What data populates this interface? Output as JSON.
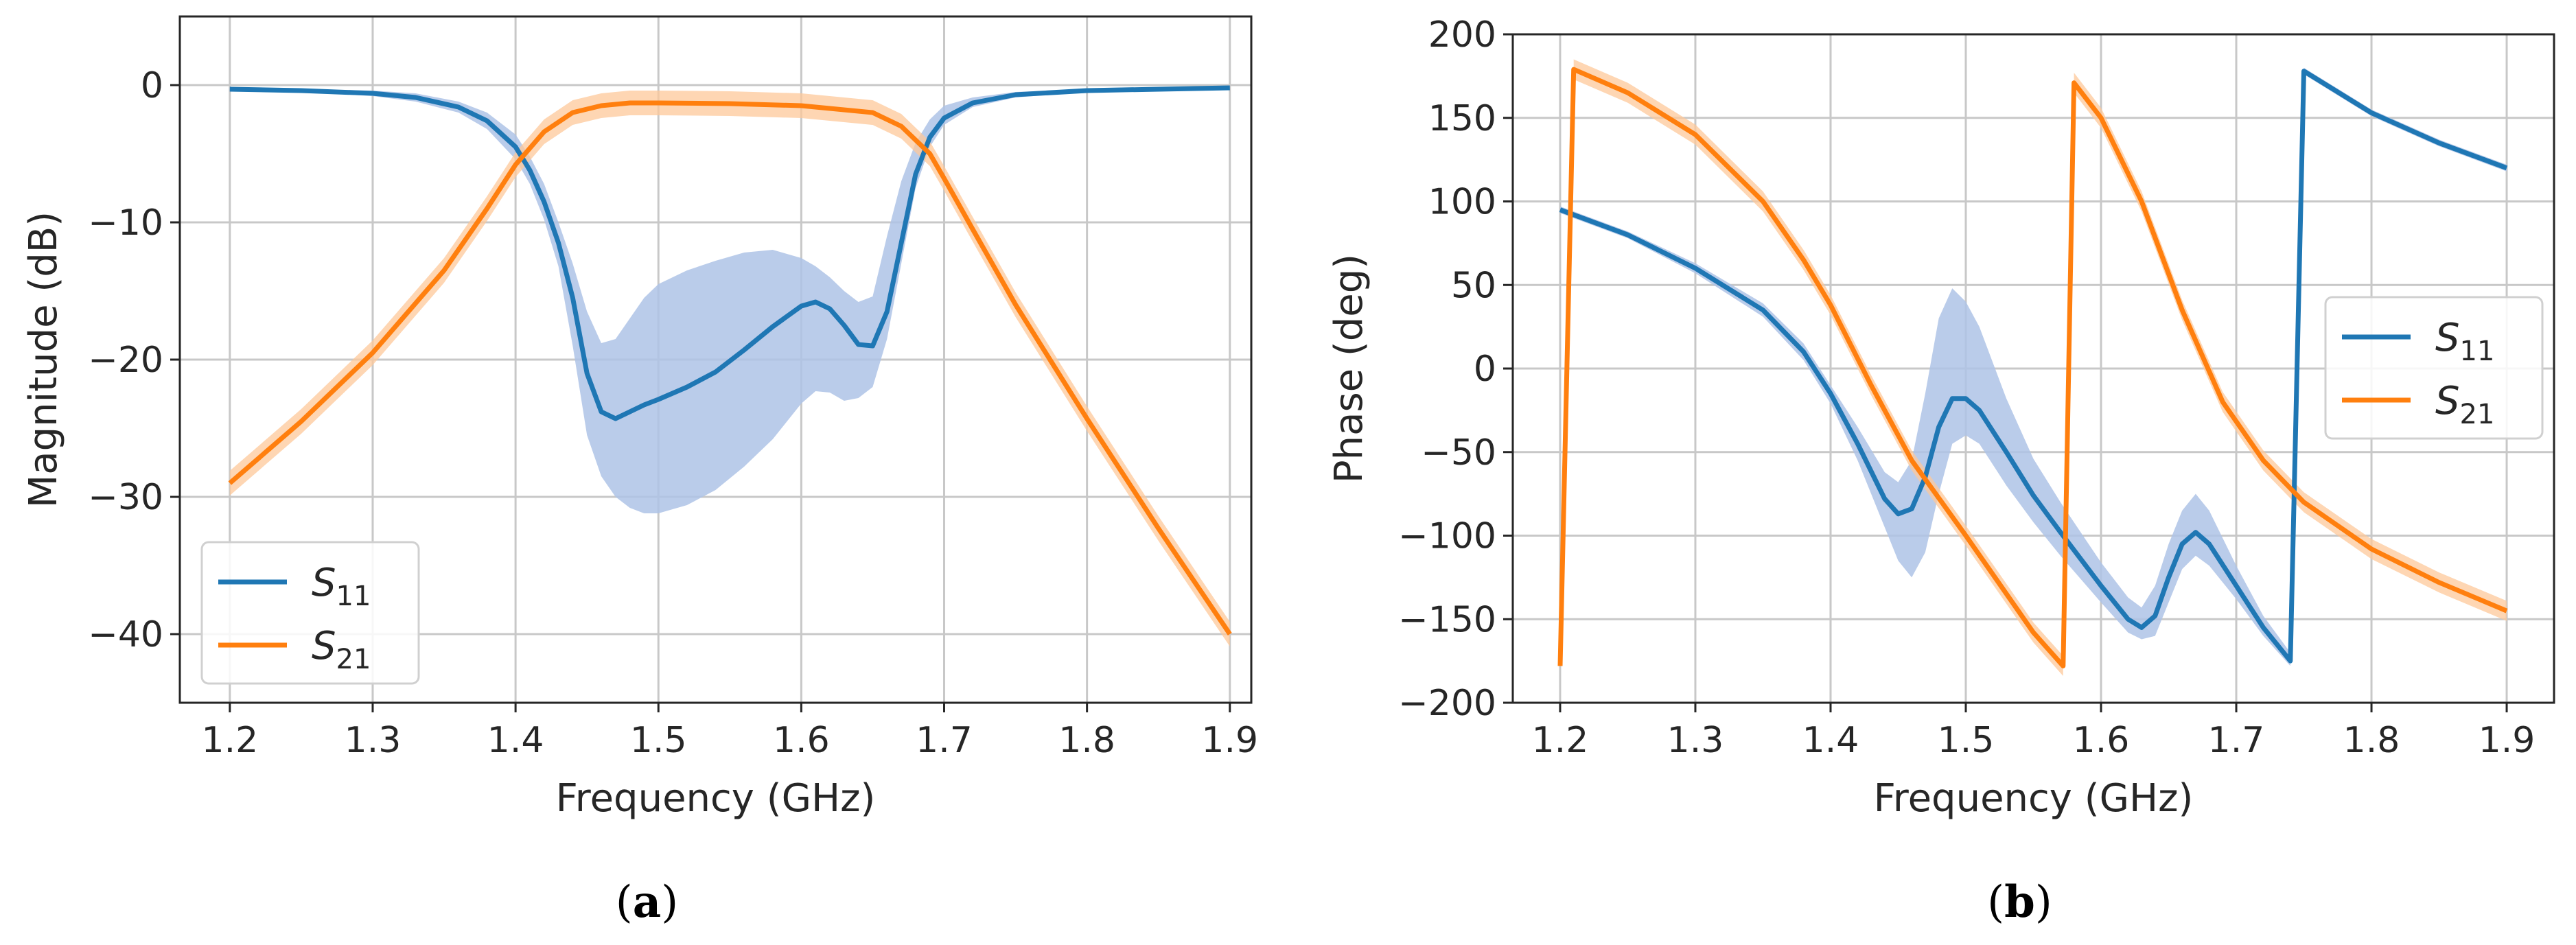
{
  "colors": {
    "s11": "#1f77b4",
    "s11_band": "#aec3e6",
    "s21": "#ff7f0e",
    "s21_band": "#fdc89a",
    "grid": "#c8c8c8",
    "axis": "#262626"
  },
  "chart_data": [
    {
      "id": "a",
      "type": "line",
      "caption_letter": "a",
      "xlabel": "Frequency (GHz)",
      "ylabel": "Magnitude (dB)",
      "xlim": [
        1.165,
        1.915
      ],
      "ylim": [
        -45,
        5
      ],
      "xticks": [
        1.2,
        1.3,
        1.4,
        1.5,
        1.6,
        1.7,
        1.8,
        1.9
      ],
      "xtick_labels": [
        "1.2",
        "1.3",
        "1.4",
        "1.5",
        "1.6",
        "1.7",
        "1.8",
        "1.9"
      ],
      "yticks": [
        0,
        -10,
        -20,
        -30,
        -40
      ],
      "ytick_labels": [
        "0",
        "−10",
        "−20",
        "−30",
        "−40"
      ],
      "grid": true,
      "legend_position": "lower-left",
      "series": [
        {
          "key": "s11",
          "name": "S11",
          "legend_main": "S",
          "legend_sub": "11",
          "color": "#1f77b4",
          "x": [
            1.2,
            1.25,
            1.3,
            1.33,
            1.36,
            1.38,
            1.4,
            1.41,
            1.42,
            1.43,
            1.44,
            1.45,
            1.46,
            1.47,
            1.48,
            1.49,
            1.5,
            1.52,
            1.54,
            1.56,
            1.58,
            1.6,
            1.61,
            1.62,
            1.63,
            1.64,
            1.65,
            1.66,
            1.67,
            1.68,
            1.69,
            1.7,
            1.72,
            1.75,
            1.8,
            1.9
          ],
          "y": [
            -0.3,
            -0.4,
            -0.6,
            -0.9,
            -1.6,
            -2.6,
            -4.5,
            -6.2,
            -8.5,
            -11.5,
            -15.5,
            -21.0,
            -23.8,
            -24.3,
            -23.8,
            -23.3,
            -22.9,
            -22.0,
            -20.9,
            -19.3,
            -17.6,
            -16.1,
            -15.8,
            -16.3,
            -17.5,
            -18.9,
            -19.0,
            -16.5,
            -11.5,
            -6.5,
            -3.8,
            -2.4,
            -1.3,
            -0.7,
            -0.4,
            -0.2
          ],
          "band_low": [
            -0.4,
            -0.5,
            -0.8,
            -1.2,
            -2.0,
            -3.2,
            -5.4,
            -7.2,
            -9.8,
            -13.2,
            -19.0,
            -25.5,
            -28.5,
            -30.0,
            -30.8,
            -31.2,
            -31.2,
            -30.6,
            -29.5,
            -27.8,
            -25.8,
            -23.2,
            -22.3,
            -22.4,
            -23.0,
            -22.8,
            -22.0,
            -18.5,
            -13.0,
            -7.5,
            -4.5,
            -2.9,
            -1.6,
            -0.9,
            -0.5,
            -0.3
          ],
          "band_high": [
            -0.2,
            -0.3,
            -0.4,
            -0.6,
            -1.2,
            -2.0,
            -3.6,
            -5.2,
            -7.2,
            -10.0,
            -13.0,
            -16.5,
            -18.8,
            -18.5,
            -17.0,
            -15.5,
            -14.5,
            -13.5,
            -12.8,
            -12.2,
            -12.0,
            -12.6,
            -13.2,
            -14.0,
            -15.0,
            -15.8,
            -15.4,
            -11.0,
            -7.0,
            -4.2,
            -2.5,
            -1.5,
            -0.9,
            -0.5,
            -0.3,
            -0.1
          ]
        },
        {
          "key": "s21",
          "name": "S21",
          "legend_main": "S",
          "legend_sub": "21",
          "color": "#ff7f0e",
          "x": [
            1.2,
            1.25,
            1.3,
            1.35,
            1.38,
            1.4,
            1.42,
            1.44,
            1.46,
            1.48,
            1.5,
            1.55,
            1.6,
            1.65,
            1.67,
            1.69,
            1.7,
            1.72,
            1.75,
            1.8,
            1.85,
            1.9
          ],
          "y": [
            -29.0,
            -24.5,
            -19.5,
            -13.5,
            -9.0,
            -5.8,
            -3.4,
            -2.0,
            -1.5,
            -1.3,
            -1.3,
            -1.35,
            -1.5,
            -2.0,
            -3.0,
            -5.0,
            -6.8,
            -10.5,
            -16.0,
            -24.3,
            -32.3,
            -40.0
          ],
          "band": 0.9
        }
      ]
    },
    {
      "id": "b",
      "type": "line",
      "caption_letter": "b",
      "xlabel": "Frequency (GHz)",
      "ylabel": "Phase (deg)",
      "xlim": [
        1.165,
        1.935
      ],
      "ylim": [
        -200,
        200
      ],
      "xticks": [
        1.2,
        1.3,
        1.4,
        1.5,
        1.6,
        1.7,
        1.8,
        1.9
      ],
      "xtick_labels": [
        "1.2",
        "1.3",
        "1.4",
        "1.5",
        "1.6",
        "1.7",
        "1.8",
        "1.9"
      ],
      "yticks": [
        200,
        150,
        100,
        50,
        0,
        -50,
        -100,
        -150,
        -200
      ],
      "ytick_labels": [
        "200",
        "150",
        "100",
        "50",
        "0",
        "−50",
        "−100",
        "−150",
        "−200"
      ],
      "grid": true,
      "legend_position": "center-right",
      "series": [
        {
          "key": "s11",
          "name": "S11",
          "legend_main": "S",
          "legend_sub": "11",
          "color": "#1f77b4",
          "x": [
            1.2,
            1.25,
            1.3,
            1.35,
            1.38,
            1.4,
            1.42,
            1.44,
            1.45,
            1.46,
            1.47,
            1.48,
            1.49,
            1.5,
            1.51,
            1.53,
            1.55,
            1.57,
            1.6,
            1.62,
            1.63,
            1.64,
            1.65,
            1.66,
            1.67,
            1.68,
            1.7,
            1.72,
            1.74,
            1.75,
            1.8,
            1.85,
            1.9
          ],
          "y": [
            95,
            80,
            60,
            35,
            10,
            -15,
            -45,
            -78,
            -87,
            -84,
            -65,
            -35,
            -18,
            -18,
            -25,
            -50,
            -76,
            -98,
            -130,
            -150,
            -155,
            -148,
            -125,
            -105,
            -98,
            -105,
            -130,
            -155,
            -175,
            178,
            153,
            135,
            120
          ],
          "band_low": [
            93,
            78,
            57,
            31,
            5,
            -21,
            -55,
            -95,
            -115,
            -125,
            -110,
            -75,
            -45,
            -40,
            -45,
            -70,
            -92,
            -112,
            -140,
            -158,
            -162,
            -160,
            -140,
            -120,
            -112,
            -118,
            -138,
            -160,
            -178,
            176,
            151,
            133,
            118
          ],
          "band_high": [
            97,
            82,
            63,
            39,
            15,
            -10,
            -35,
            -62,
            -68,
            -55,
            -15,
            30,
            48,
            40,
            25,
            -18,
            -54,
            -80,
            -116,
            -137,
            -143,
            -130,
            -105,
            -85,
            -75,
            -85,
            -118,
            -148,
            -170,
            180,
            155,
            137,
            122
          ]
        },
        {
          "key": "s21",
          "name": "S21",
          "legend_main": "S",
          "legend_sub": "21",
          "color": "#ff7f0e",
          "x": [
            1.2,
            1.21,
            1.25,
            1.3,
            1.35,
            1.38,
            1.4,
            1.43,
            1.46,
            1.5,
            1.55,
            1.572,
            1.58,
            1.6,
            1.63,
            1.66,
            1.69,
            1.72,
            1.75,
            1.8,
            1.85,
            1.9
          ],
          "y": [
            -178,
            179,
            165,
            140,
            100,
            65,
            38,
            -10,
            -55,
            -100,
            -158,
            -178,
            171,
            150,
            100,
            35,
            -20,
            -55,
            -80,
            -108,
            -128,
            -145
          ],
          "band": 6
        }
      ]
    }
  ]
}
